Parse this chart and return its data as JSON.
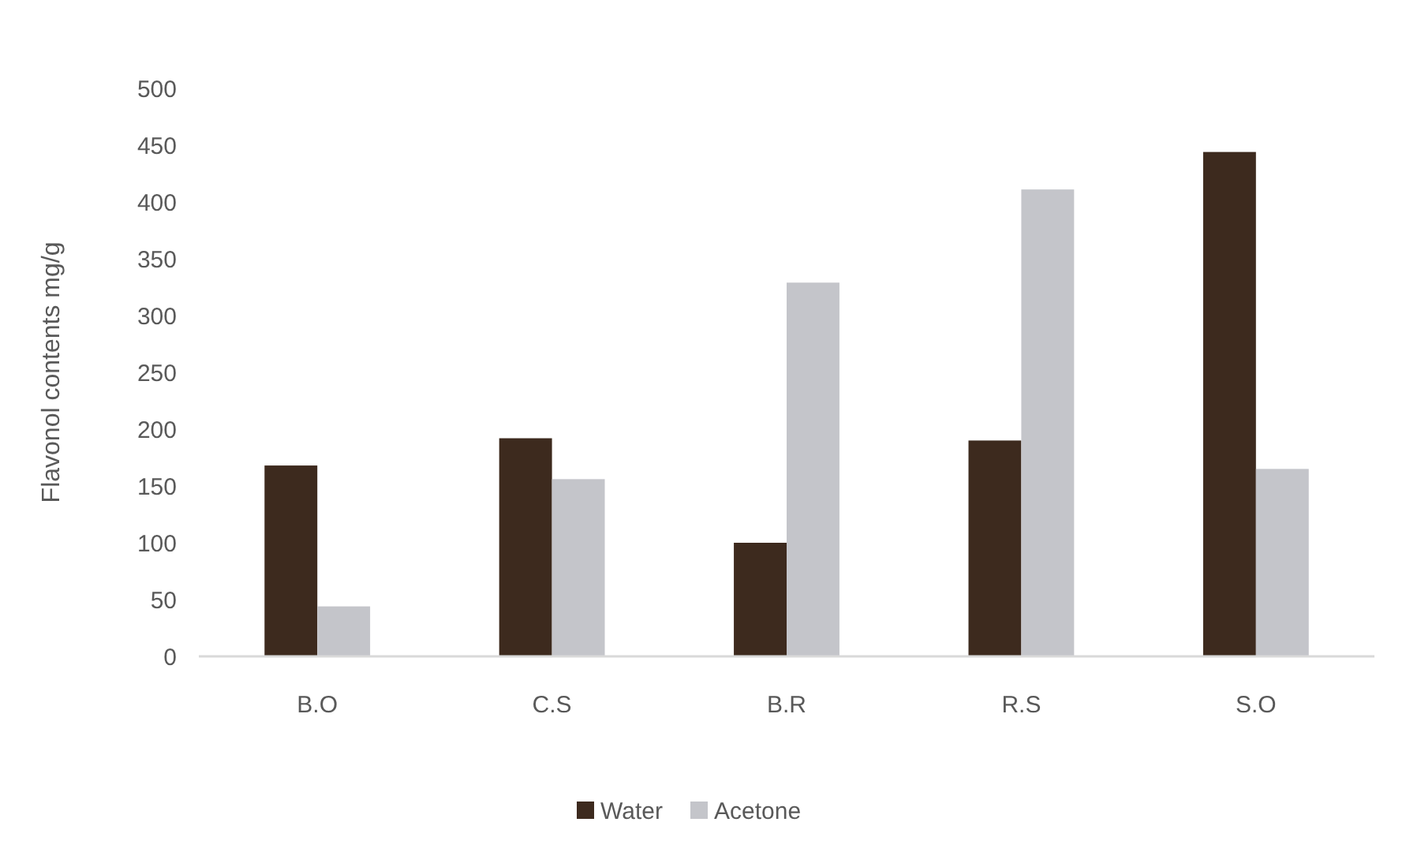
{
  "chart_data": {
    "type": "bar",
    "ylabel": "Flavonol contents mg/g",
    "categories": [
      "B.O",
      "C.S",
      "B.R",
      "R.S",
      "S.O"
    ],
    "series": [
      {
        "name": "Water",
        "color": "#3d2a1e",
        "values": [
          168,
          192,
          100,
          190,
          444
        ]
      },
      {
        "name": "Acetone",
        "color": "#c4c5ca",
        "values": [
          44,
          156,
          329,
          411,
          165
        ]
      }
    ],
    "ylim": [
      0,
      500
    ],
    "yticks": [
      0,
      50,
      100,
      150,
      200,
      250,
      300,
      350,
      400,
      450,
      500
    ],
    "grid": false,
    "legend": "bottom"
  }
}
